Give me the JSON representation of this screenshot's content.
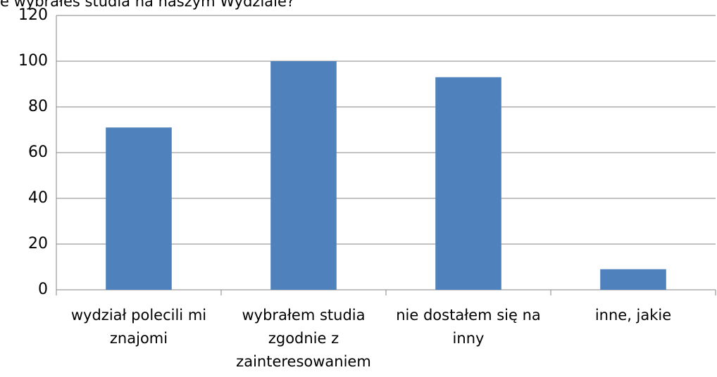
{
  "chart_data": {
    "type": "bar",
    "title": "e wybrałeś studia na naszym Wydziale?",
    "categories": [
      "wydział polecili mi znajomi",
      "wybrałem studia zgodnie z zainteresowaniem",
      "nie dostałem się na inny",
      "inne, jakie"
    ],
    "values": [
      71,
      100,
      93,
      9
    ],
    "color": "#4f81bd",
    "ylim": [
      0,
      120
    ],
    "yticks": [
      0,
      20,
      40,
      60,
      80,
      100,
      120
    ],
    "grid": true
  }
}
